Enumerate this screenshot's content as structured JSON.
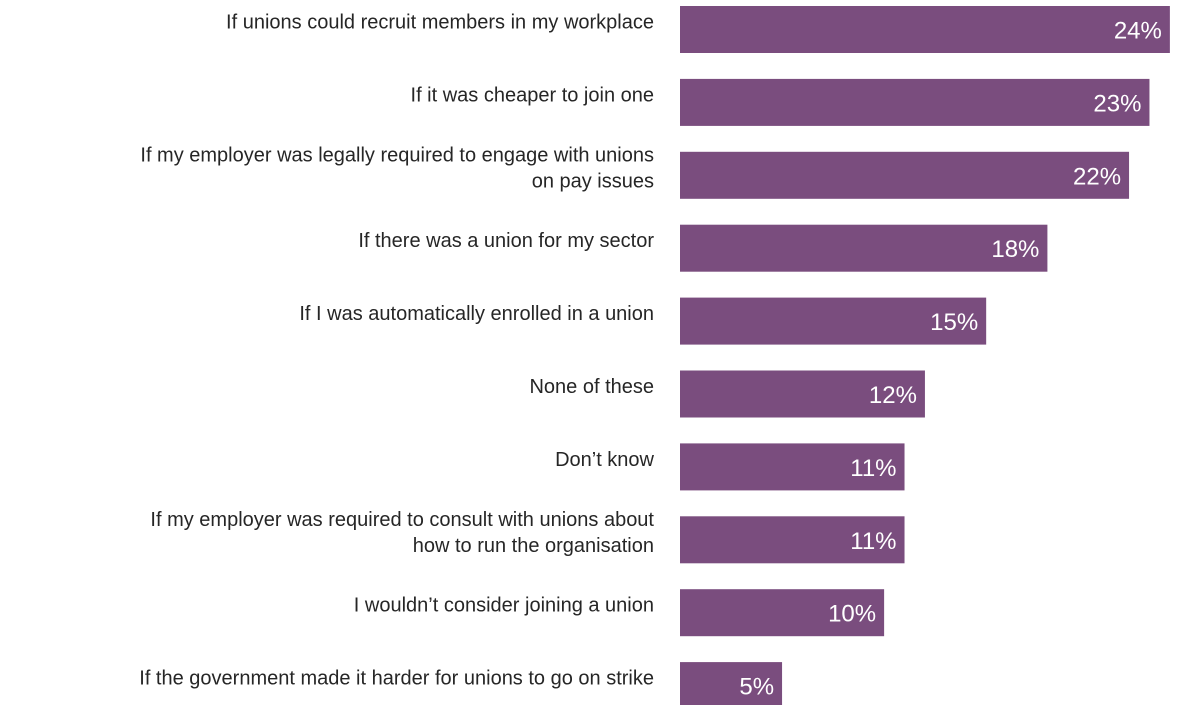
{
  "chart_data": {
    "type": "bar",
    "orientation": "horizontal",
    "title": "",
    "xlabel": "",
    "ylabel": "",
    "grid": false,
    "legend": "none",
    "bar_color": "#7a4d7e",
    "label_color": "#262626",
    "value_label_color": "#ffffff",
    "value_suffix": "%",
    "xlim": [
      0,
      24.5
    ],
    "categories": [
      [
        "If unions could recruit members in my workplace"
      ],
      [
        "If it was cheaper to join one"
      ],
      [
        "If my employer was legally required to engage with unions",
        "on pay issues"
      ],
      [
        "If there was a union for my sector"
      ],
      [
        "If I was automatically enrolled in a union"
      ],
      [
        "None of these"
      ],
      [
        "Don’t know"
      ],
      [
        "If my employer was required to consult with unions about",
        "how to run the organisation"
      ],
      [
        "I wouldn’t consider joining a union"
      ],
      [
        "If the government made it harder for unions to go on strike"
      ]
    ],
    "values": [
      24,
      23,
      22,
      18,
      15,
      12,
      11,
      11,
      10,
      5
    ],
    "value_labels": [
      "24%",
      "23%",
      "22%",
      "18%",
      "15%",
      "12%",
      "11%",
      "11%",
      "10%",
      "5%"
    ]
  }
}
